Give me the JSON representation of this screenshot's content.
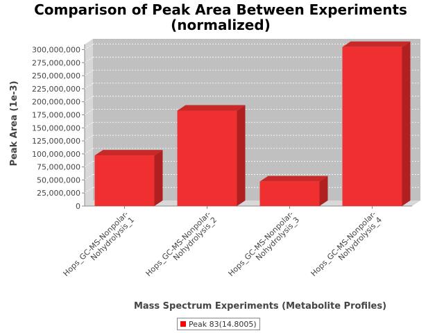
{
  "chart_data": {
    "type": "bar",
    "title": "Comparison of Peak Area Between Experiments",
    "subtitle": "(normalized)",
    "xlabel": "Mass Spectrum Experiments (Metabolite Profiles)",
    "ylabel": "Peak Area (1e-3)",
    "categories": [
      [
        "Hops_GC-MS-Nonpolar-",
        "Nohydrolysis_1"
      ],
      [
        "Hops_GC-MS-Nonpolar-",
        "Nohydrolysis_2"
      ],
      [
        "Hops_GC-MS-Nonpolar-",
        "Nohydrolysis_3"
      ],
      [
        "Hops_GC-MS-Nonpolar-",
        "Nohydrolysis_4"
      ]
    ],
    "series": [
      {
        "name": "Peak 83(14.8005)",
        "values": [
          97000000,
          183000000,
          47000000,
          305000000
        ]
      }
    ],
    "ylim": [
      0,
      310000000
    ],
    "yticks": [
      {
        "value": 0,
        "label": "0"
      },
      {
        "value": 25000000,
        "label": "25,000,000"
      },
      {
        "value": 50000000,
        "label": "50,000,000"
      },
      {
        "value": 75000000,
        "label": "75,000,000"
      },
      {
        "value": 100000000,
        "label": "100,000,000"
      },
      {
        "value": 125000000,
        "label": "125,000,000"
      },
      {
        "value": 150000000,
        "label": "150,000,000"
      },
      {
        "value": 175000000,
        "label": "175,000,000"
      },
      {
        "value": 200000000,
        "label": "200,000,000"
      },
      {
        "value": 225000000,
        "label": "225,000,000"
      },
      {
        "value": 250000000,
        "label": "250,000,000"
      },
      {
        "value": 275000000,
        "label": "275,000,000"
      },
      {
        "value": 300000000,
        "label": "300,000,000"
      }
    ],
    "grid": true,
    "legend": "bottom",
    "colors": {
      "bar_front": "#f03030",
      "bar_side": "#b02020",
      "bar_top": "#c82828",
      "plot_bg": "#c0c0c0",
      "plot_wall": "#d8d8d8",
      "legend_swatch": "#ff0000"
    }
  }
}
